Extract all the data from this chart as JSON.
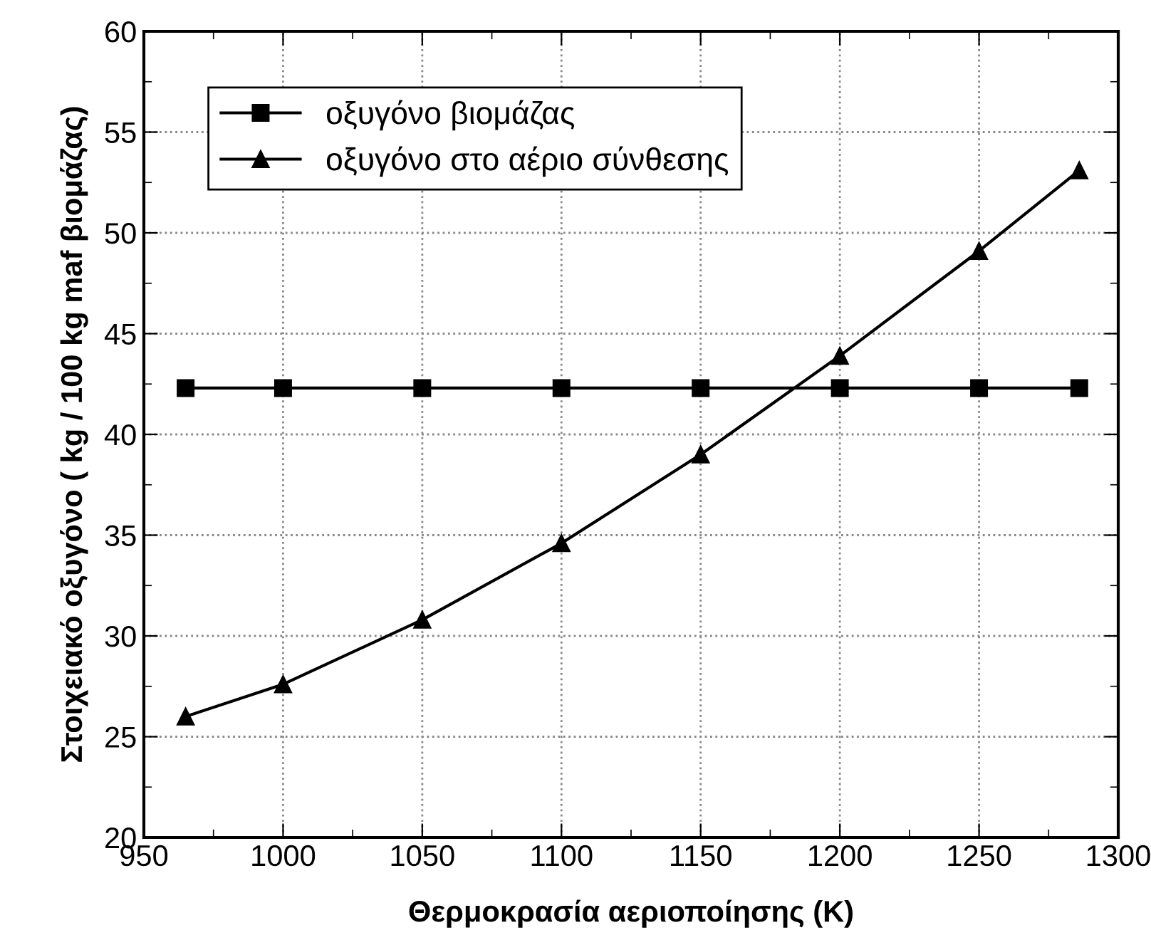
{
  "chart_data": {
    "type": "line",
    "xlabel": "Θερμοκρασία αεριοποίησης (K)",
    "ylabel": "Στοιχειακό οξυγόνο ( kg / 100 kg maf βιομάζας)",
    "x": [
      965,
      1000,
      1050,
      1100,
      1150,
      1200,
      1250,
      1286
    ],
    "series": [
      {
        "name": "οξυγόνο βιομάζας",
        "color": "#000000",
        "marker": "square",
        "values": [
          42.3,
          42.3,
          42.3,
          42.3,
          42.3,
          42.3,
          42.3,
          42.3
        ]
      },
      {
        "name": "οξυγόνο στο αέριο σύνθεσης",
        "color": "#000000",
        "marker": "triangle",
        "values": [
          26.0,
          27.6,
          30.8,
          34.6,
          39.0,
          43.9,
          49.1,
          53.1
        ]
      }
    ],
    "xlim": [
      950,
      1300
    ],
    "xticks": [
      950,
      1000,
      1050,
      1100,
      1150,
      1200,
      1250,
      1300
    ],
    "ylim": [
      20,
      60
    ],
    "yticks": [
      20,
      25,
      30,
      35,
      40,
      45,
      50,
      55,
      60
    ],
    "grid": true,
    "legend": "top left",
    "line_style": "solid"
  }
}
